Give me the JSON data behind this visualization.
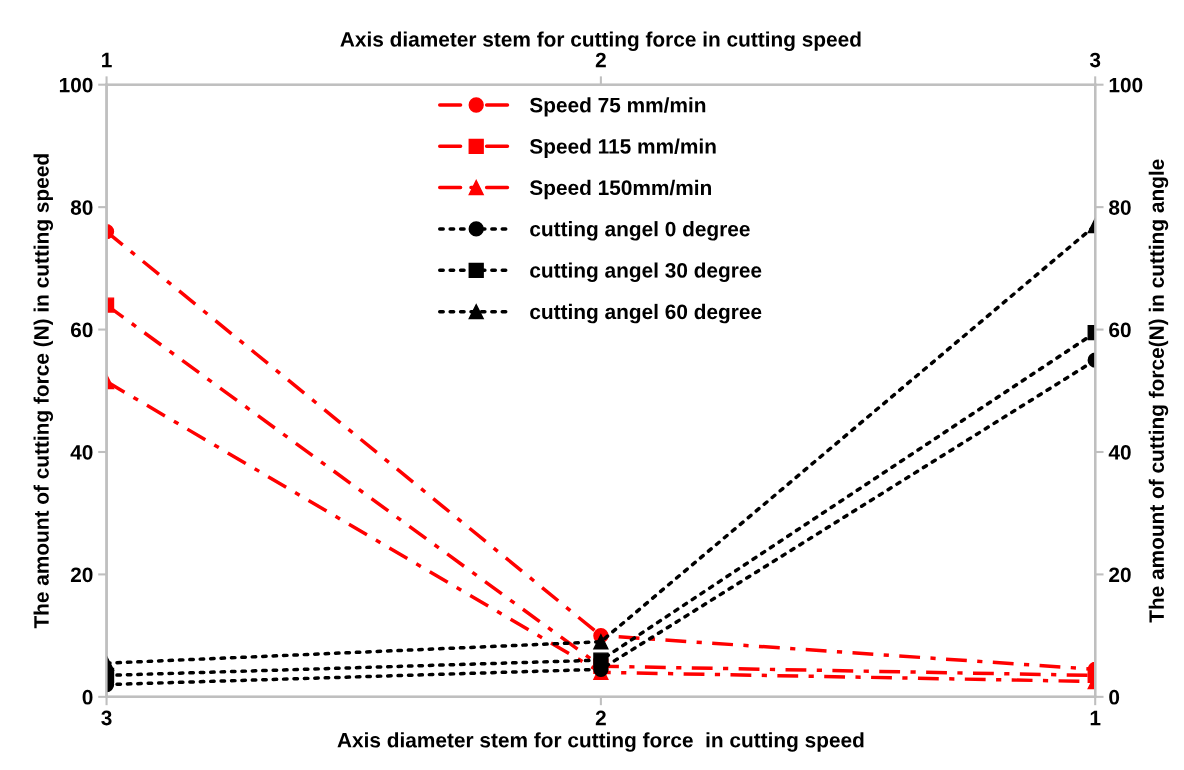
{
  "chart_data": {
    "type": "line",
    "xlabel": "Axis diameter stem for cutting force  in cutting speed",
    "x2label": "Axis diameter stem for cutting force in cutting speed",
    "ylabel": "The amount of cutting force (N) in cutting speed",
    "y2label": "The amount of cutting force(N) in cutting angle",
    "xlim": [
      3,
      1
    ],
    "xticks": [
      3,
      2,
      1
    ],
    "x2lim": [
      1,
      3
    ],
    "x2ticks": [
      1,
      2,
      3
    ],
    "ylim": [
      0,
      100
    ],
    "yticks": [
      0,
      20,
      40,
      60,
      80,
      100
    ],
    "y2lim": [
      0,
      100
    ],
    "y2ticks": [
      0,
      20,
      40,
      60,
      80,
      100
    ],
    "grid": false,
    "legend": "top",
    "series": [
      {
        "name": "Speed 75 mm/min",
        "color": "#ff0000",
        "x": [
          3,
          2,
          1
        ],
        "values": [
          76,
          10,
          4.5
        ],
        "marker": "circle",
        "line_style": "dashed"
      },
      {
        "name": "Speed 115 mm/min",
        "color": "#ff0000",
        "x": [
          3,
          2,
          1
        ],
        "values": [
          64,
          5,
          3.5
        ],
        "marker": "square",
        "line_style": "dashed"
      },
      {
        "name": "Speed 150mm/min",
        "color": "#ff0000",
        "x": [
          3,
          2,
          1
        ],
        "values": [
          51.5,
          4,
          2.5
        ],
        "marker": "triangle",
        "line_style": "dashed"
      },
      {
        "name": "cutting angel 0 degree",
        "color": "#000000",
        "axis": "y2",
        "x": [
          3,
          2,
          1
        ],
        "values": [
          2,
          4.5,
          55
        ],
        "marker": "circle",
        "line_style": "dotted"
      },
      {
        "name": "cutting angel 30 degree",
        "color": "#000000",
        "axis": "y2",
        "x": [
          3,
          2,
          1
        ],
        "values": [
          3.5,
          6,
          59.5
        ],
        "marker": "square",
        "line_style": "dotted"
      },
      {
        "name": "cutting angel 60 degree",
        "color": "#000000",
        "axis": "y2",
        "x": [
          3,
          2,
          1
        ],
        "values": [
          5.5,
          9,
          77
        ],
        "marker": "triangle",
        "line_style": "dotted"
      }
    ]
  }
}
